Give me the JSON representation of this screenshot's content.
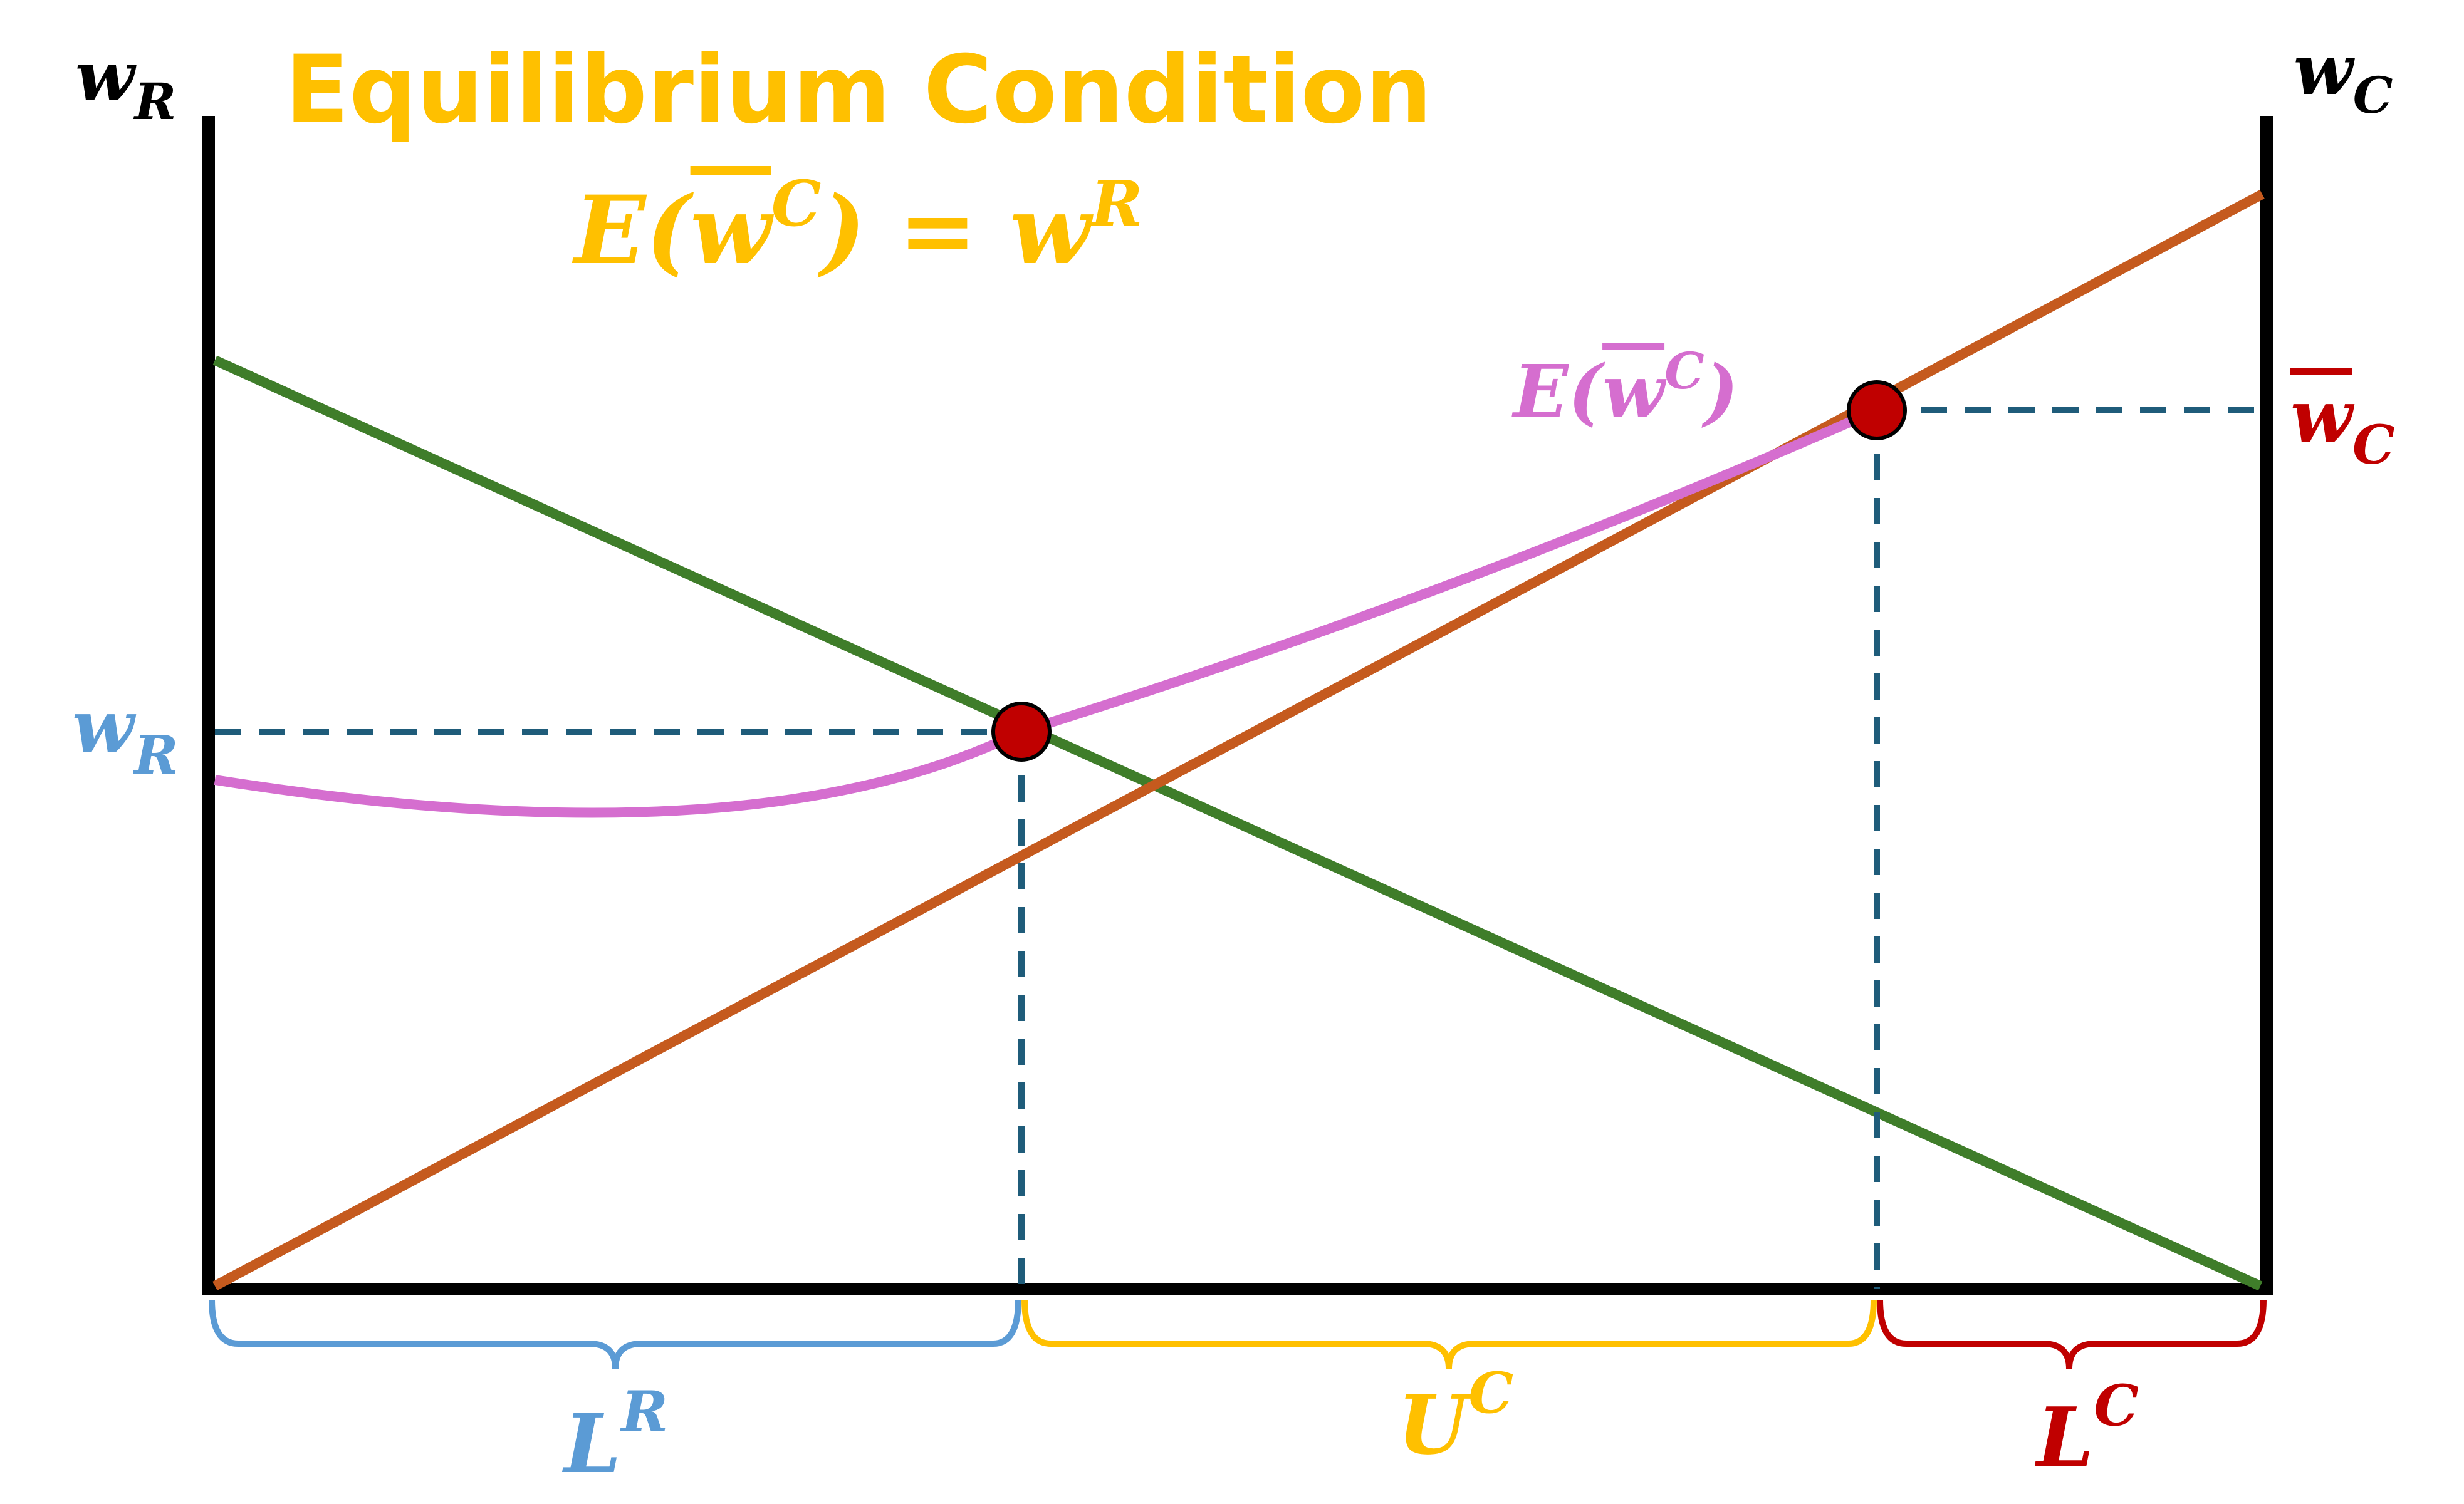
{
  "title": "Equilibrium Condition",
  "condition": {
    "lhs": "E(",
    "var": "w",
    "var_sup": "C",
    "rhs": ") = w",
    "rhs_sup": "R"
  },
  "left_axis": {
    "base": "w",
    "sub": "R"
  },
  "right_axis": {
    "base": "w",
    "sub": "C"
  },
  "curve_label": {
    "prefix": "E(",
    "var": "w",
    "sup": "C",
    "suffix": ")"
  },
  "wr_label": {
    "base": "w",
    "sub": "R"
  },
  "wc_label": {
    "base": "w",
    "sub": "C"
  },
  "segments": {
    "left": {
      "base": "L",
      "sup": "R"
    },
    "middle": {
      "base": "U",
      "sup": "C"
    },
    "right": {
      "base": "L",
      "sup": "C"
    }
  },
  "colors": {
    "title": "#ffc000",
    "axis": "#000000",
    "green_line": "#3f7d2a",
    "orange_line": "#c55a1e",
    "pink_curve": "#d56ecf",
    "dashed": "#1f5c7a",
    "point": "#c00000",
    "blue": "#5b9bd5",
    "yellow": "#ffc000",
    "red": "#c00000"
  }
}
